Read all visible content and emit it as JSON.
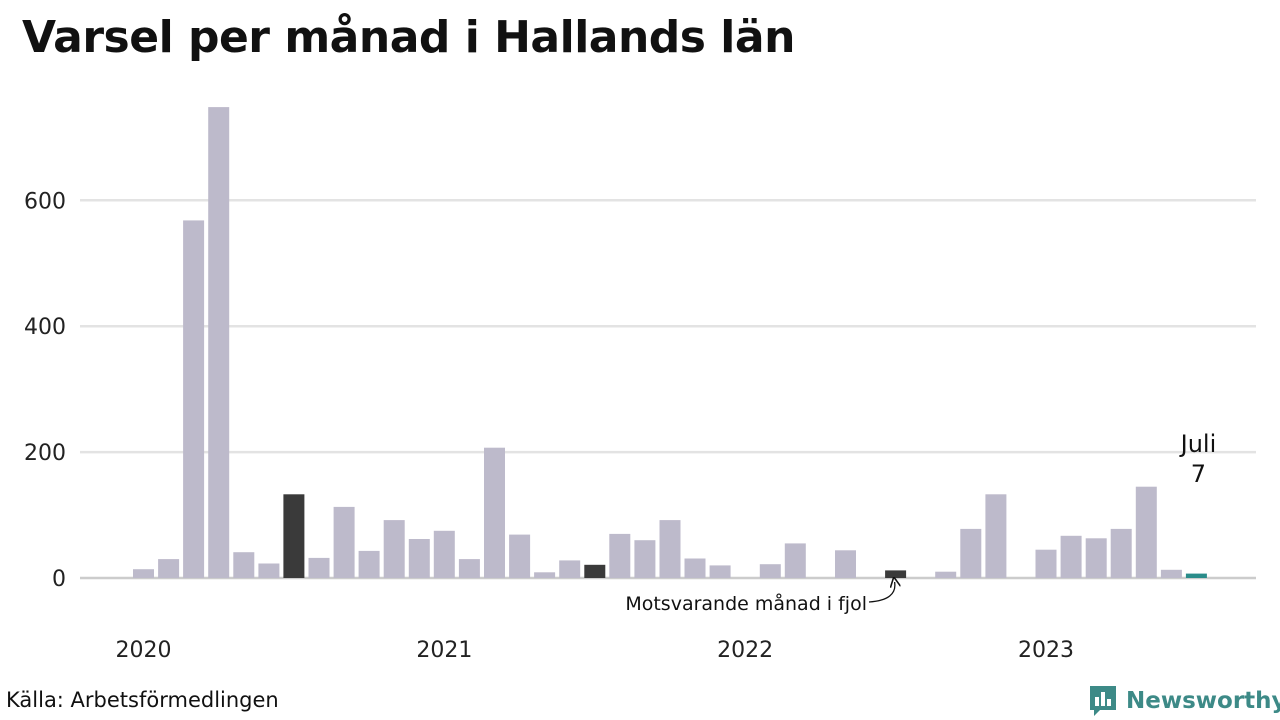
{
  "title": "Varsel per månad i Hallands län",
  "source": "Källa: Arbetsförmedlingen",
  "brand": {
    "name": "Newsworthy",
    "icon": "newsworthy-logo-icon",
    "color": "#3d8a87"
  },
  "chart_data": {
    "type": "bar",
    "ylim": [
      0,
      760
    ],
    "yticks": [
      0,
      200,
      400,
      600
    ],
    "grid": true,
    "x_labels": [
      {
        "label": "2020",
        "index": 0
      },
      {
        "label": "2021",
        "index": 12
      },
      {
        "label": "2022",
        "index": 24
      },
      {
        "label": "2023",
        "index": 36
      }
    ],
    "x": [
      "2020-01",
      "2020-02",
      "2020-03",
      "2020-04",
      "2020-05",
      "2020-06",
      "2020-07",
      "2020-08",
      "2020-09",
      "2020-10",
      "2020-11",
      "2020-12",
      "2021-01",
      "2021-02",
      "2021-03",
      "2021-04",
      "2021-05",
      "2021-06",
      "2021-07",
      "2021-08",
      "2021-09",
      "2021-10",
      "2021-11",
      "2021-12",
      "2022-01",
      "2022-02",
      "2022-03",
      "2022-04",
      "2022-05",
      "2022-06",
      "2022-07",
      "2022-08",
      "2022-09",
      "2022-10",
      "2022-11",
      "2022-12",
      "2023-01",
      "2023-02",
      "2023-03",
      "2023-04",
      "2023-05",
      "2023-06",
      "2023-07"
    ],
    "values": [
      14,
      30,
      568,
      748,
      41,
      23,
      133,
      32,
      113,
      43,
      92,
      62,
      75,
      30,
      207,
      69,
      9,
      28,
      21,
      70,
      60,
      92,
      31,
      20,
      0,
      22,
      55,
      0,
      44,
      0,
      12,
      0,
      10,
      78,
      133,
      0,
      45,
      67,
      63,
      78,
      145,
      13,
      7
    ],
    "highlighted": [
      "2020-07",
      "2021-07",
      "2022-07"
    ],
    "current": "2023-07",
    "colors": {
      "default": "#bdbacb",
      "highlight": "#3a3a3a",
      "current": "#2a8c8a",
      "grid": "#e3e3e3",
      "baseline": "#cccccc"
    },
    "annotations": {
      "current_label": "Juli",
      "current_value": "7",
      "previous_year_label": "Motsvarande månad i fjol"
    }
  }
}
